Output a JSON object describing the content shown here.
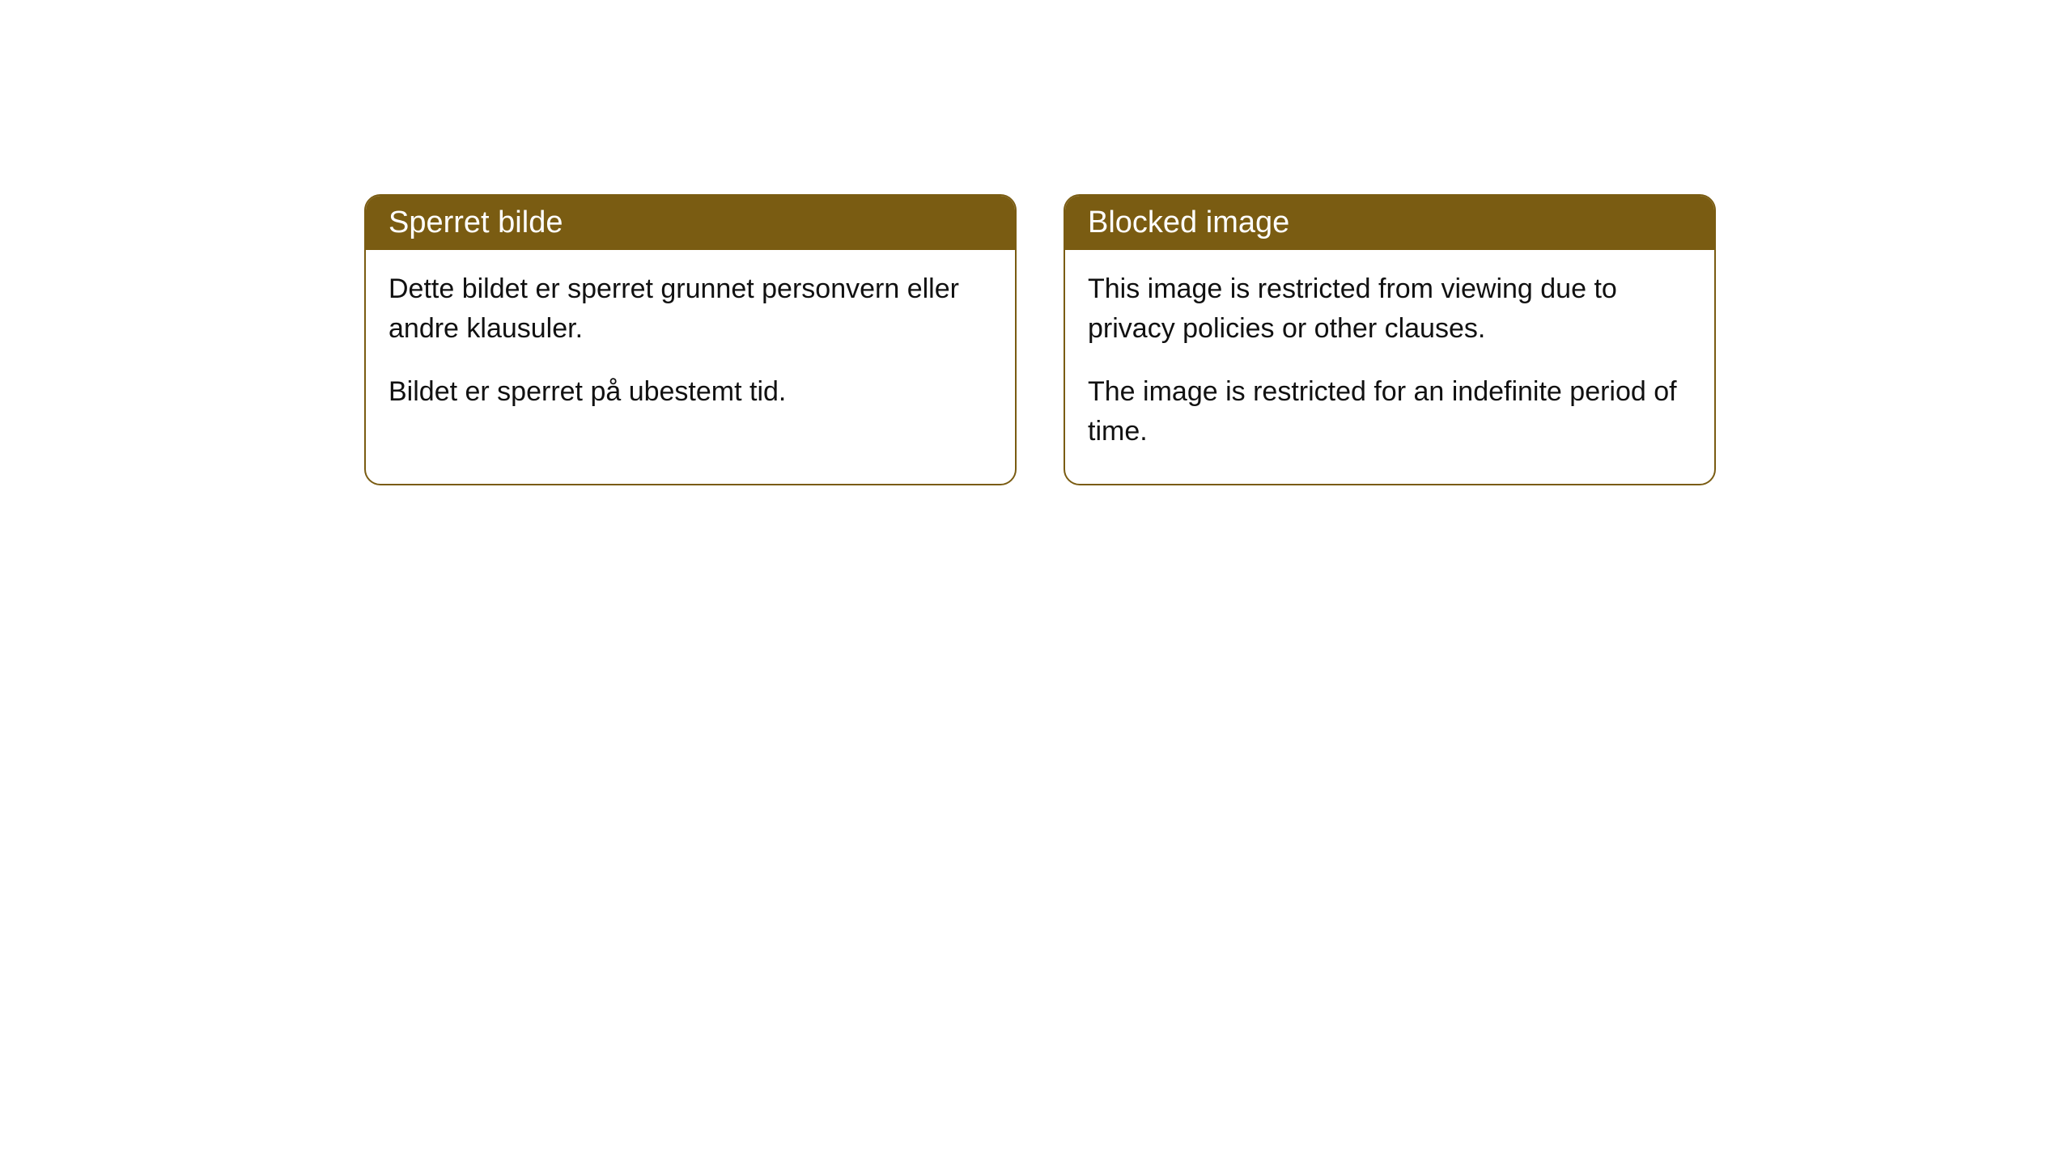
{
  "cards": [
    {
      "title": "Sperret bilde",
      "paragraph1": "Dette bildet er sperret grunnet personvern eller andre klausuler.",
      "paragraph2": "Bildet er sperret på ubestemt tid."
    },
    {
      "title": "Blocked image",
      "paragraph1": "This image is restricted from viewing due to privacy policies or other clauses.",
      "paragraph2": "The image is restricted for an indefinite period of time."
    }
  ],
  "styling": {
    "header_background": "#7a5c12",
    "header_text_color": "#ffffff",
    "border_color": "#7a5c12",
    "body_text_color": "#111111",
    "page_background": "#ffffff",
    "border_radius": 20,
    "header_fontsize": 38,
    "body_fontsize": 34
  }
}
